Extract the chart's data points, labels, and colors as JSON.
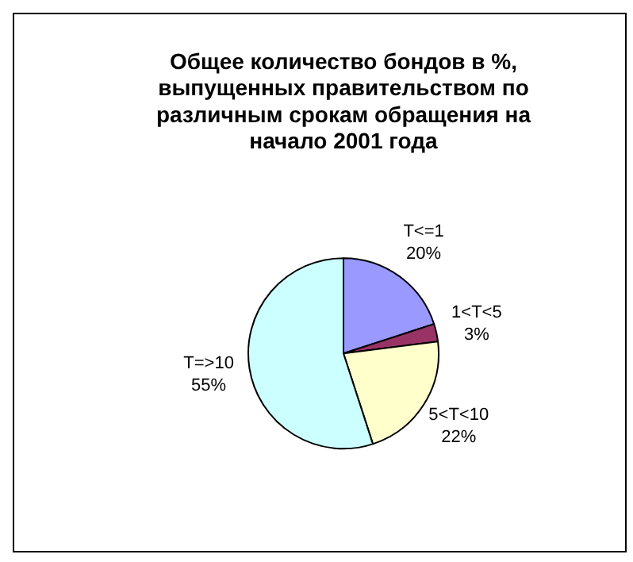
{
  "chart_data": {
    "type": "pie",
    "title": "Общее количество бондов в %, выпущенных правительством по различным срокам обращения на начало 2001 года",
    "categories": [
      "T<=1",
      "1<T<5",
      "5<T<10",
      "T=>10"
    ],
    "values": [
      20,
      3,
      22,
      55
    ],
    "colors": [
      "#9999ff",
      "#993366",
      "#ffffcc",
      "#ccffff"
    ],
    "value_labels": [
      "20%",
      "3%",
      "22%",
      "55%"
    ],
    "legend": false
  }
}
